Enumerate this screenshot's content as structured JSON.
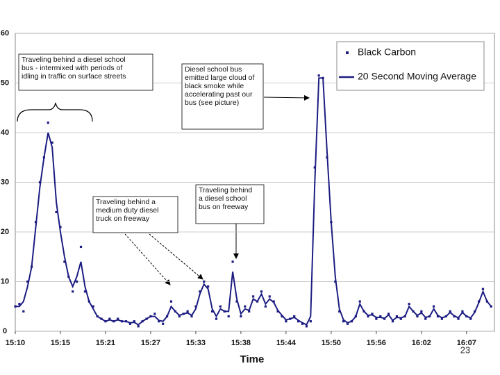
{
  "chart_data": {
    "type": "scatter-line",
    "x_label": "Time",
    "page_number": "23",
    "x": [
      910,
      910.5,
      911,
      911.5,
      912,
      912.5,
      913,
      913.5,
      914,
      914.5,
      915,
      915.5,
      916,
      916.5,
      917,
      917.5,
      918,
      918.5,
      919,
      919.5,
      920,
      920.5,
      921,
      921.5,
      922,
      922.5,
      923,
      923.5,
      924,
      924.5,
      925,
      925.5,
      926,
      926.5,
      927,
      927.5,
      928,
      928.5,
      929,
      929.5,
      930,
      930.5,
      931,
      931.5,
      932,
      932.5,
      933,
      933.5,
      934,
      934.5,
      935,
      935.5,
      936,
      936.5,
      937,
      937.5,
      938,
      938.5,
      939,
      939.5,
      940,
      940.5,
      941,
      941.5,
      942,
      942.5,
      943,
      943.5,
      944,
      944.5,
      945,
      945.5,
      946,
      946.5,
      947,
      947.5,
      948,
      948.5,
      949,
      949.5,
      950,
      950.5,
      951,
      951.5,
      952,
      952.5,
      953,
      953.5,
      954,
      954.5,
      955,
      955.5,
      956,
      956.5,
      957,
      957.5,
      958,
      958.5,
      959,
      959.5,
      960,
      960.5,
      961,
      961.5,
      962,
      962.5,
      963,
      963.5,
      964,
      964.5,
      965,
      965.5,
      966,
      966.5,
      967,
      967.5,
      968
    ],
    "series": [
      {
        "name": "Black Carbon",
        "color": "#1c1c82",
        "kind": "points",
        "values": [
          5,
          5.5,
          4,
          10,
          13,
          22,
          30,
          35,
          42,
          38,
          24,
          21,
          14,
          11,
          8,
          10,
          17,
          8,
          6,
          5,
          3,
          2.5,
          2,
          2.5,
          2,
          2.5,
          2,
          2,
          1.5,
          2,
          1,
          2,
          2.5,
          3,
          3.5,
          2,
          1.5,
          3,
          6,
          4,
          3,
          3.5,
          4,
          3,
          5,
          8,
          10,
          9,
          4,
          2.5,
          5,
          4,
          3,
          14,
          6,
          3,
          5,
          4,
          7,
          6,
          8,
          5,
          7,
          6,
          4,
          3,
          2,
          2.5,
          3,
          2,
          1.5,
          1,
          2,
          33,
          51.5,
          51,
          35,
          22,
          10,
          4,
          2,
          1.5,
          2,
          3,
          6,
          4,
          3,
          3.5,
          2.5,
          3,
          2.5,
          3.5,
          2,
          3,
          2.5,
          3,
          5.5,
          4,
          3,
          4,
          2.5,
          3,
          5,
          3,
          2.5,
          3,
          4,
          3,
          2.5,
          4,
          3,
          2.5,
          4,
          6,
          8.5,
          6,
          5
        ]
      },
      {
        "name": "20 Second Moving Average",
        "color": "#1c1c82",
        "kind": "line",
        "values": [
          5,
          5,
          6,
          9,
          13,
          21,
          29,
          35,
          40,
          37,
          26,
          20,
          15,
          11,
          9,
          11,
          14,
          9,
          6,
          4.5,
          3,
          2.5,
          2,
          2.3,
          2,
          2.3,
          2,
          2,
          1.7,
          1.8,
          1.3,
          2,
          2.5,
          3,
          3,
          2.2,
          2,
          3,
          5,
          4,
          3.2,
          3.5,
          3.7,
          3.2,
          4.5,
          7.5,
          9.5,
          8.5,
          4.5,
          3,
          4.5,
          4,
          4,
          12,
          6.5,
          3.5,
          4.5,
          4.2,
          6.5,
          6,
          7.5,
          5.5,
          6.5,
          5.8,
          4.2,
          3.2,
          2.3,
          2.5,
          2.8,
          2.2,
          1.7,
          1.3,
          3,
          30,
          51,
          51,
          36,
          22,
          11,
          4.5,
          2.3,
          1.7,
          2,
          3,
          5.5,
          4,
          3.2,
          3.3,
          2.8,
          2.8,
          2.6,
          3.3,
          2.2,
          2.8,
          2.7,
          3,
          5,
          4,
          3.2,
          3.7,
          2.8,
          3,
          4.5,
          3.2,
          2.7,
          3,
          3.8,
          3.1,
          2.7,
          3.8,
          3,
          2.7,
          3.8,
          5.8,
          8,
          6,
          5
        ]
      }
    ],
    "xlim": [
      910,
      968.4
    ],
    "xticks": [
      {
        "value": 910,
        "label": "15:10"
      },
      {
        "value": 915.5,
        "label": "15:15"
      },
      {
        "value": 921,
        "label": "15:21"
      },
      {
        "value": 926.5,
        "label": "15:27"
      },
      {
        "value": 932,
        "label": "15:33"
      },
      {
        "value": 937.5,
        "label": "15:38"
      },
      {
        "value": 943,
        "label": "15:44"
      },
      {
        "value": 948.5,
        "label": "15:50"
      },
      {
        "value": 954,
        "label": "15:56"
      },
      {
        "value": 959.5,
        "label": "16:02"
      },
      {
        "value": 965,
        "label": "16:07"
      }
    ],
    "ylim": [
      0,
      60
    ],
    "yticks": [
      0,
      10,
      20,
      30,
      40,
      50,
      60
    ],
    "grid": true,
    "legend": "upper right",
    "annotations": [
      {
        "lines": [
          "Traveling behind a diesel school",
          "bus - intermixed with periods of",
          "idling in traffic on surface streets"
        ]
      },
      {
        "lines": [
          "Diesel school bus",
          "emitted large cloud of",
          "black smoke while",
          "accelerating past our",
          "bus (see picture)"
        ]
      },
      {
        "lines": [
          "Traveling behind a",
          "medium duty diesel",
          "truck on freeway"
        ]
      },
      {
        "lines": [
          "Traveling behind",
          "a diesel school",
          "bus on freeway"
        ]
      }
    ]
  }
}
